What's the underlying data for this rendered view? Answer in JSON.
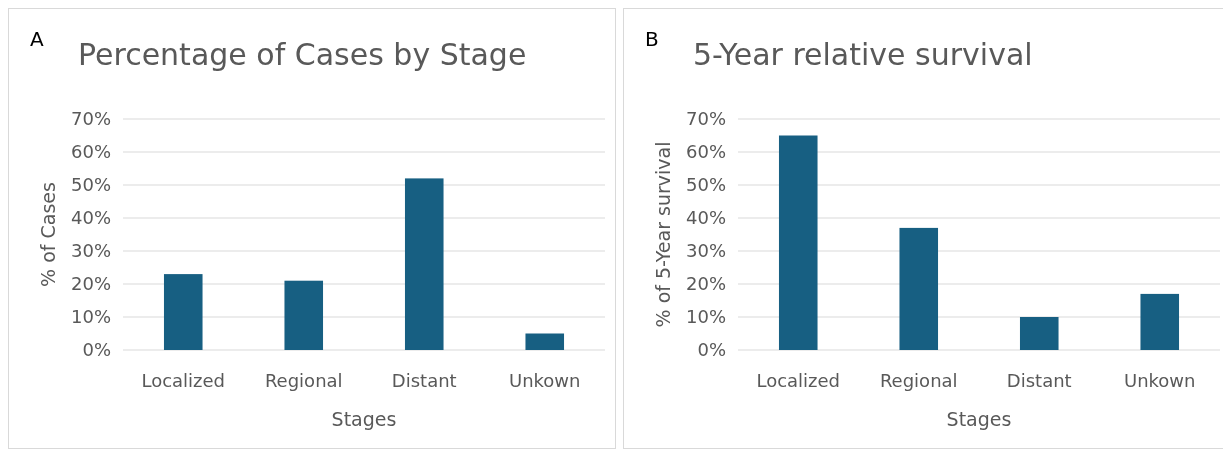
{
  "chart_data": [
    {
      "type": "bar",
      "title": "Percentage of Cases by Stage",
      "xlabel": "Stages",
      "ylabel": "% of Cases",
      "annotations": [
        "A"
      ],
      "categories": [
        "Localized",
        "Regional",
        "Distant",
        "Unkown"
      ],
      "values": [
        23,
        21,
        52,
        5
      ],
      "color": "#175f82",
      "ylim": [
        0,
        70
      ],
      "yticks": [
        {
          "value": 0,
          "label": "0%"
        },
        {
          "value": 10,
          "label": "10%"
        },
        {
          "value": 20,
          "label": "20%"
        },
        {
          "value": 30,
          "label": "30%"
        },
        {
          "value": 40,
          "label": "40%"
        },
        {
          "value": 50,
          "label": "50%"
        },
        {
          "value": 60,
          "label": "60%"
        },
        {
          "value": 70,
          "label": "70%"
        }
      ],
      "grid": "y"
    },
    {
      "type": "bar",
      "title": "5-Year relative survival",
      "xlabel": "Stages",
      "ylabel": "% of 5-Year survival",
      "annotations": [
        "B"
      ],
      "categories": [
        "Localized",
        "Regional",
        "Distant",
        "Unkown"
      ],
      "values": [
        65,
        37,
        10,
        17
      ],
      "color": "#175f82",
      "ylim": [
        0,
        70
      ],
      "yticks": [
        {
          "value": 0,
          "label": "0%"
        },
        {
          "value": 10,
          "label": "10%"
        },
        {
          "value": 20,
          "label": "20%"
        },
        {
          "value": 30,
          "label": "30%"
        },
        {
          "value": 40,
          "label": "40%"
        },
        {
          "value": 50,
          "label": "50%"
        },
        {
          "value": 60,
          "label": "60%"
        },
        {
          "value": 70,
          "label": "70%"
        }
      ],
      "grid": "y"
    }
  ]
}
